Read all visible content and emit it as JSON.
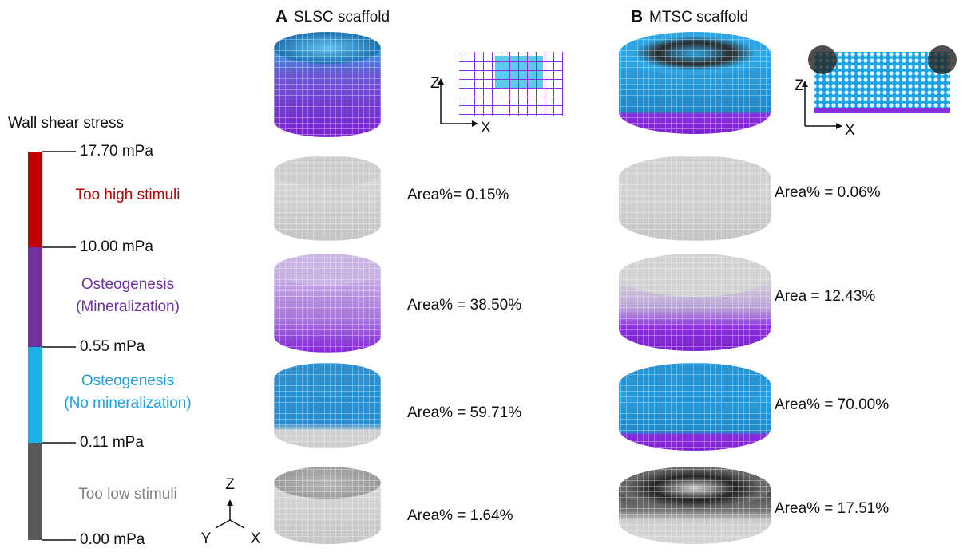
{
  "legend": {
    "title": "Wall shear stress",
    "levels": [
      "17.70 mPa",
      "10.00 mPa",
      "0.55 mPa",
      "0.11 mPa",
      "0.00 mPa"
    ],
    "bands": [
      [
        "Too high stimuli"
      ],
      [
        "Osteogenesis",
        "(Mineralization)"
      ],
      [
        "Osteogenesis",
        "(No mineralization)"
      ],
      [
        "Too low stimuli"
      ]
    ],
    "axes": {
      "z": "Z",
      "y": "Y",
      "x": "X"
    }
  },
  "panels": [
    {
      "letter": "A",
      "title": "SLSC scaffold",
      "inset_axes": {
        "z": "Z",
        "x": "X"
      },
      "areas": [
        "Area%= 0.15%",
        "Area% = 38.50%",
        "Area% = 59.71%",
        "Area% = 1.64%"
      ]
    },
    {
      "letter": "B",
      "title": "MTSC scaffold",
      "inset_axes": {
        "z": "Z",
        "x": "X"
      },
      "areas": [
        "Area% = 0.06%",
        "Area = 12.43%",
        "Area% = 70.00%",
        "Area% = 17.51%"
      ]
    }
  ]
}
